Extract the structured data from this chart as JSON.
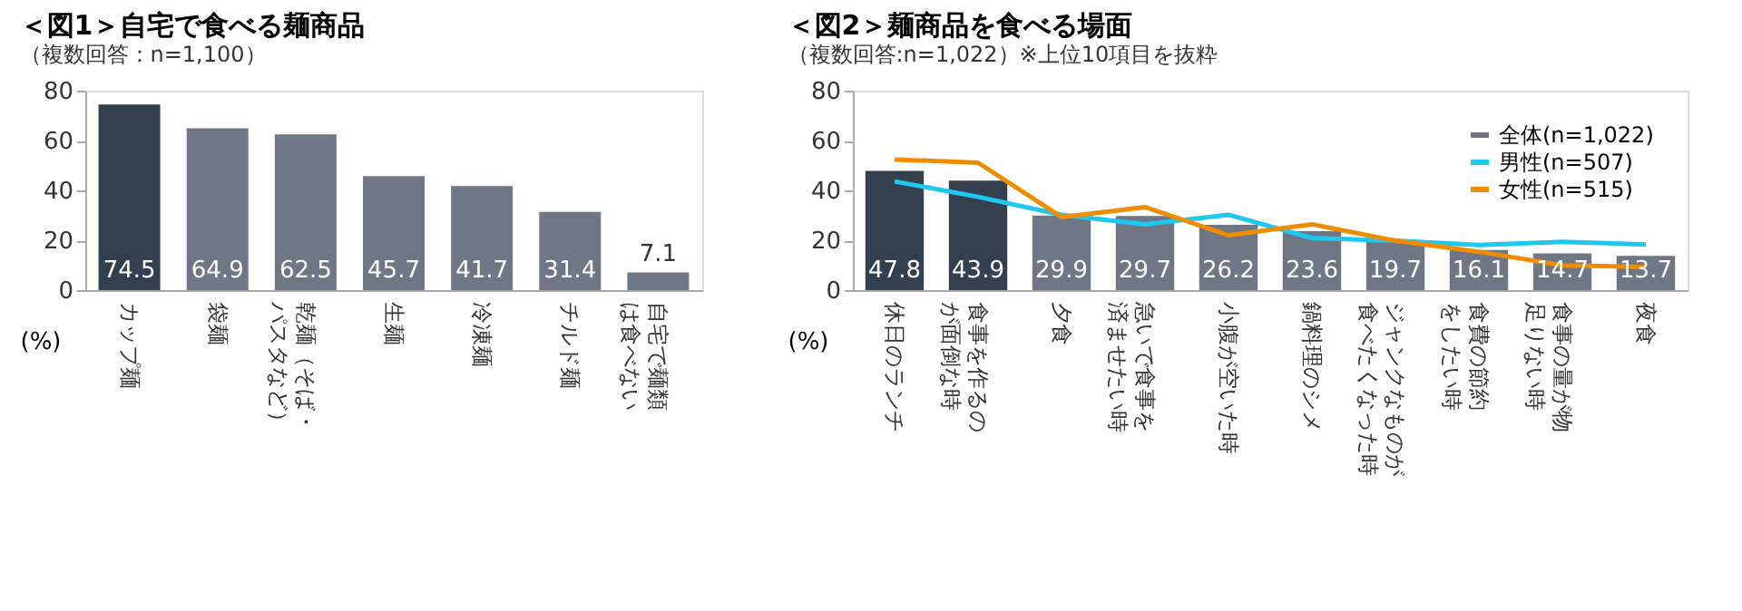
{
  "chart_data": [
    {
      "type": "bar",
      "title": "＜図1＞自宅で食べる麺商品",
      "subtitle": "（複数回答：n=1,100）",
      "ylabel": "(%)",
      "categories": [
        "カップ麺",
        "袋麺",
        "乾麺（そば・パスタなど）",
        "生麺",
        "冷凍麺",
        "チルド麺",
        "自宅で麺類は食べない"
      ],
      "values": [
        74.5,
        64.9,
        62.5,
        45.7,
        41.7,
        31.4,
        7.1
      ],
      "colors": [
        "#343f50",
        "#6f7787",
        "#6f7787",
        "#6f7787",
        "#6f7787",
        "#6f7787",
        "#6f7787"
      ],
      "ylim": [
        0,
        80
      ],
      "yticks": [
        0,
        20,
        40,
        60,
        80
      ],
      "data_labels": true,
      "grid": false
    },
    {
      "type": "bar",
      "title": "＜図2＞麺商品を食べる場面",
      "subtitle": "（複数回答:n=1,022）※上位10項目を抜粋",
      "ylabel": "(%)",
      "categories": [
        "休日のランチ",
        "食事を作るのが面倒な時",
        "夕食",
        "急いで食事を済ませたい時",
        "小腹が空いた時",
        "鍋料理のシメ",
        "ジャンクなものが食べたくなった時",
        "食費の節約をしたい時",
        "食事の量が物足りない時",
        "夜食"
      ],
      "series": [
        {
          "name": "全体(n=1,022)",
          "type": "bar",
          "color": "#6f7787",
          "colors": [
            "#343f50",
            "#343f50",
            "#6f7787",
            "#6f7787",
            "#6f7787",
            "#6f7787",
            "#6f7787",
            "#6f7787",
            "#6f7787",
            "#6f7787"
          ],
          "values": [
            47.8,
            43.9,
            29.9,
            29.7,
            26.2,
            23.6,
            19.7,
            16.1,
            14.7,
            13.7
          ],
          "value_labels": [
            "47.8",
            "43.9",
            "29.9",
            "29.7",
            "26.2",
            "23.6",
            "19.7",
            "16.1",
            "14.7",
            "13.7"
          ]
        },
        {
          "name": "男性(n=507)",
          "type": "line",
          "color": "#1ec8f0",
          "values": [
            43.6,
            37.4,
            30.2,
            26.4,
            30.2,
            20.9,
            19.8,
            18.1,
            19.4,
            18.3
          ]
        },
        {
          "name": "女性(n=515)",
          "type": "line",
          "color": "#f08c00",
          "values": [
            52.4,
            51.1,
            29.3,
            33.3,
            22.0,
            26.4,
            19.8,
            15.4,
            9.9,
            9.3
          ]
        }
      ],
      "ylim": [
        0,
        80
      ],
      "yticks": [
        0,
        20,
        40,
        60,
        80
      ],
      "grid": false,
      "legend": "top right",
      "line_style": "solid",
      "marker": "none"
    }
  ]
}
